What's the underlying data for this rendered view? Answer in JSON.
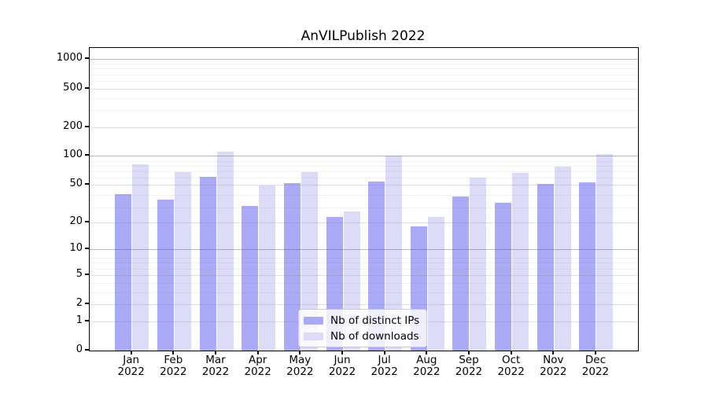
{
  "figure": {
    "background": "#ffffff"
  },
  "chart_data": {
    "type": "bar",
    "title": "AnVILPublish 2022",
    "categories": [
      "Jan 2022",
      "Feb 2022",
      "Mar 2022",
      "Apr 2022",
      "May 2022",
      "Jun 2022",
      "Jul 2022",
      "Aug 2022",
      "Sep 2022",
      "Oct 2022",
      "Nov 2022",
      "Dec 2022"
    ],
    "series": [
      {
        "name": "Nb of distinct IPs",
        "color": "#aaaaf6",
        "values": [
          40,
          35,
          61,
          30,
          52,
          23,
          54,
          18,
          38,
          32,
          51,
          53
        ]
      },
      {
        "name": "Nb of downloads",
        "color": "#dcdcf8",
        "values": [
          82,
          68,
          110,
          49,
          68,
          26,
          101,
          23,
          60,
          66,
          78,
          104
        ]
      }
    ],
    "xlabel": "",
    "ylabel": "",
    "yscale": "log1p",
    "y_ticks": [
      0,
      1,
      2,
      5,
      10,
      20,
      50,
      100,
      200,
      500,
      1000
    ],
    "ylim": [
      0,
      1300
    ],
    "grid": true,
    "legend_position": "lower center",
    "colors": {
      "axis": "#000000",
      "grid_major": "#dddddd",
      "grid_minor": "#f0f0f0",
      "background": "#ffffff"
    }
  }
}
